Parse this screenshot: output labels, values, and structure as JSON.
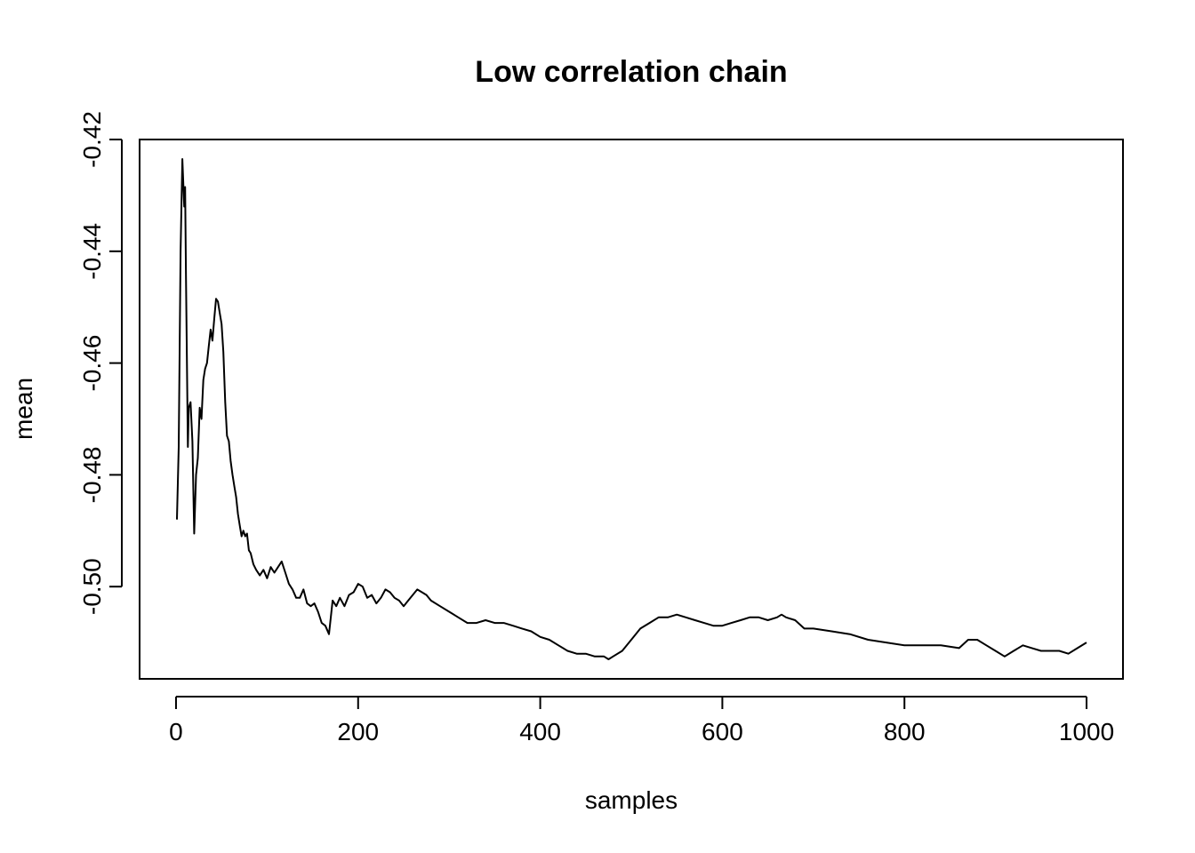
{
  "chart_data": {
    "type": "line",
    "title": "Low correlation chain",
    "xlabel": "samples",
    "ylabel": "mean",
    "xlim": [
      -40,
      1040
    ],
    "ylim": [
      -0.5165,
      -0.42
    ],
    "x_ticks": [
      0,
      200,
      400,
      600,
      800,
      1000
    ],
    "x_tick_labels": [
      "0",
      "200",
      "400",
      "600",
      "800",
      "1000"
    ],
    "y_ticks": [
      -0.42,
      -0.44,
      -0.46,
      -0.48,
      -0.5
    ],
    "y_tick_labels": [
      "-0.42",
      "-0.44",
      "-0.46",
      "-0.48",
      "-0.50"
    ],
    "grid": false,
    "series": [
      {
        "color": "#000000",
        "x": [
          1,
          3,
          5,
          7,
          9,
          10,
          11,
          13,
          14,
          16,
          18,
          20,
          22,
          24,
          26,
          28,
          30,
          32,
          34,
          36,
          38,
          40,
          42,
          44,
          46,
          48,
          50,
          52,
          54,
          56,
          58,
          60,
          62,
          64,
          66,
          68,
          70,
          72,
          74,
          76,
          78,
          80,
          82,
          85,
          88,
          92,
          96,
          100,
          104,
          108,
          112,
          116,
          120,
          124,
          128,
          132,
          136,
          140,
          144,
          148,
          152,
          156,
          160,
          164,
          168,
          172,
          176,
          180,
          185,
          190,
          195,
          200,
          205,
          210,
          215,
          220,
          225,
          230,
          235,
          240,
          245,
          250,
          255,
          260,
          265,
          270,
          275,
          280,
          290,
          300,
          310,
          320,
          330,
          340,
          350,
          360,
          370,
          380,
          390,
          400,
          410,
          420,
          430,
          440,
          450,
          460,
          470,
          475,
          480,
          490,
          500,
          510,
          520,
          530,
          540,
          550,
          560,
          570,
          580,
          590,
          600,
          610,
          620,
          630,
          640,
          650,
          660,
          665,
          670,
          680,
          690,
          700,
          720,
          740,
          760,
          780,
          800,
          820,
          840,
          860,
          870,
          880,
          890,
          900,
          910,
          920,
          930,
          940,
          950,
          960,
          970,
          980,
          990,
          1000
        ],
        "y": [
          -0.488,
          -0.475,
          -0.44,
          -0.4235,
          -0.432,
          -0.4285,
          -0.445,
          -0.475,
          -0.468,
          -0.467,
          -0.474,
          -0.4905,
          -0.48,
          -0.477,
          -0.468,
          -0.47,
          -0.463,
          -0.461,
          -0.46,
          -0.457,
          -0.454,
          -0.456,
          -0.452,
          -0.4485,
          -0.449,
          -0.451,
          -0.453,
          -0.458,
          -0.467,
          -0.473,
          -0.474,
          -0.4775,
          -0.48,
          -0.482,
          -0.484,
          -0.487,
          -0.489,
          -0.491,
          -0.49,
          -0.491,
          -0.4905,
          -0.4935,
          -0.494,
          -0.496,
          -0.497,
          -0.498,
          -0.497,
          -0.4985,
          -0.4965,
          -0.4975,
          -0.4965,
          -0.4955,
          -0.4975,
          -0.4995,
          -0.5005,
          -0.502,
          -0.502,
          -0.5005,
          -0.503,
          -0.5035,
          -0.503,
          -0.5045,
          -0.5065,
          -0.507,
          -0.5085,
          -0.5025,
          -0.5035,
          -0.502,
          -0.5035,
          -0.5015,
          -0.501,
          -0.4995,
          -0.5,
          -0.502,
          -0.5015,
          -0.503,
          -0.502,
          -0.5005,
          -0.501,
          -0.502,
          -0.5025,
          -0.5035,
          -0.5025,
          -0.5015,
          -0.5005,
          -0.501,
          -0.5015,
          -0.5025,
          -0.5035,
          -0.5045,
          -0.5055,
          -0.5065,
          -0.5065,
          -0.506,
          -0.5065,
          -0.5065,
          -0.507,
          -0.5075,
          -0.508,
          -0.509,
          -0.5095,
          -0.5105,
          -0.5115,
          -0.512,
          -0.512,
          -0.5125,
          -0.5125,
          -0.513,
          -0.5125,
          -0.5115,
          -0.5095,
          -0.5075,
          -0.5065,
          -0.5055,
          -0.5055,
          -0.505,
          -0.5055,
          -0.506,
          -0.5065,
          -0.507,
          -0.507,
          -0.5065,
          -0.506,
          -0.5055,
          -0.5055,
          -0.506,
          -0.5055,
          -0.505,
          -0.5055,
          -0.506,
          -0.5075,
          -0.5075,
          -0.508,
          -0.5085,
          -0.5095,
          -0.51,
          -0.5105,
          -0.5105,
          -0.5105,
          -0.511,
          -0.5095,
          -0.5095,
          -0.5105,
          -0.5115,
          -0.5125,
          -0.5115,
          -0.5105,
          -0.511,
          -0.5115,
          -0.5115,
          -0.5115,
          -0.512,
          -0.511,
          -0.51
        ]
      }
    ]
  }
}
